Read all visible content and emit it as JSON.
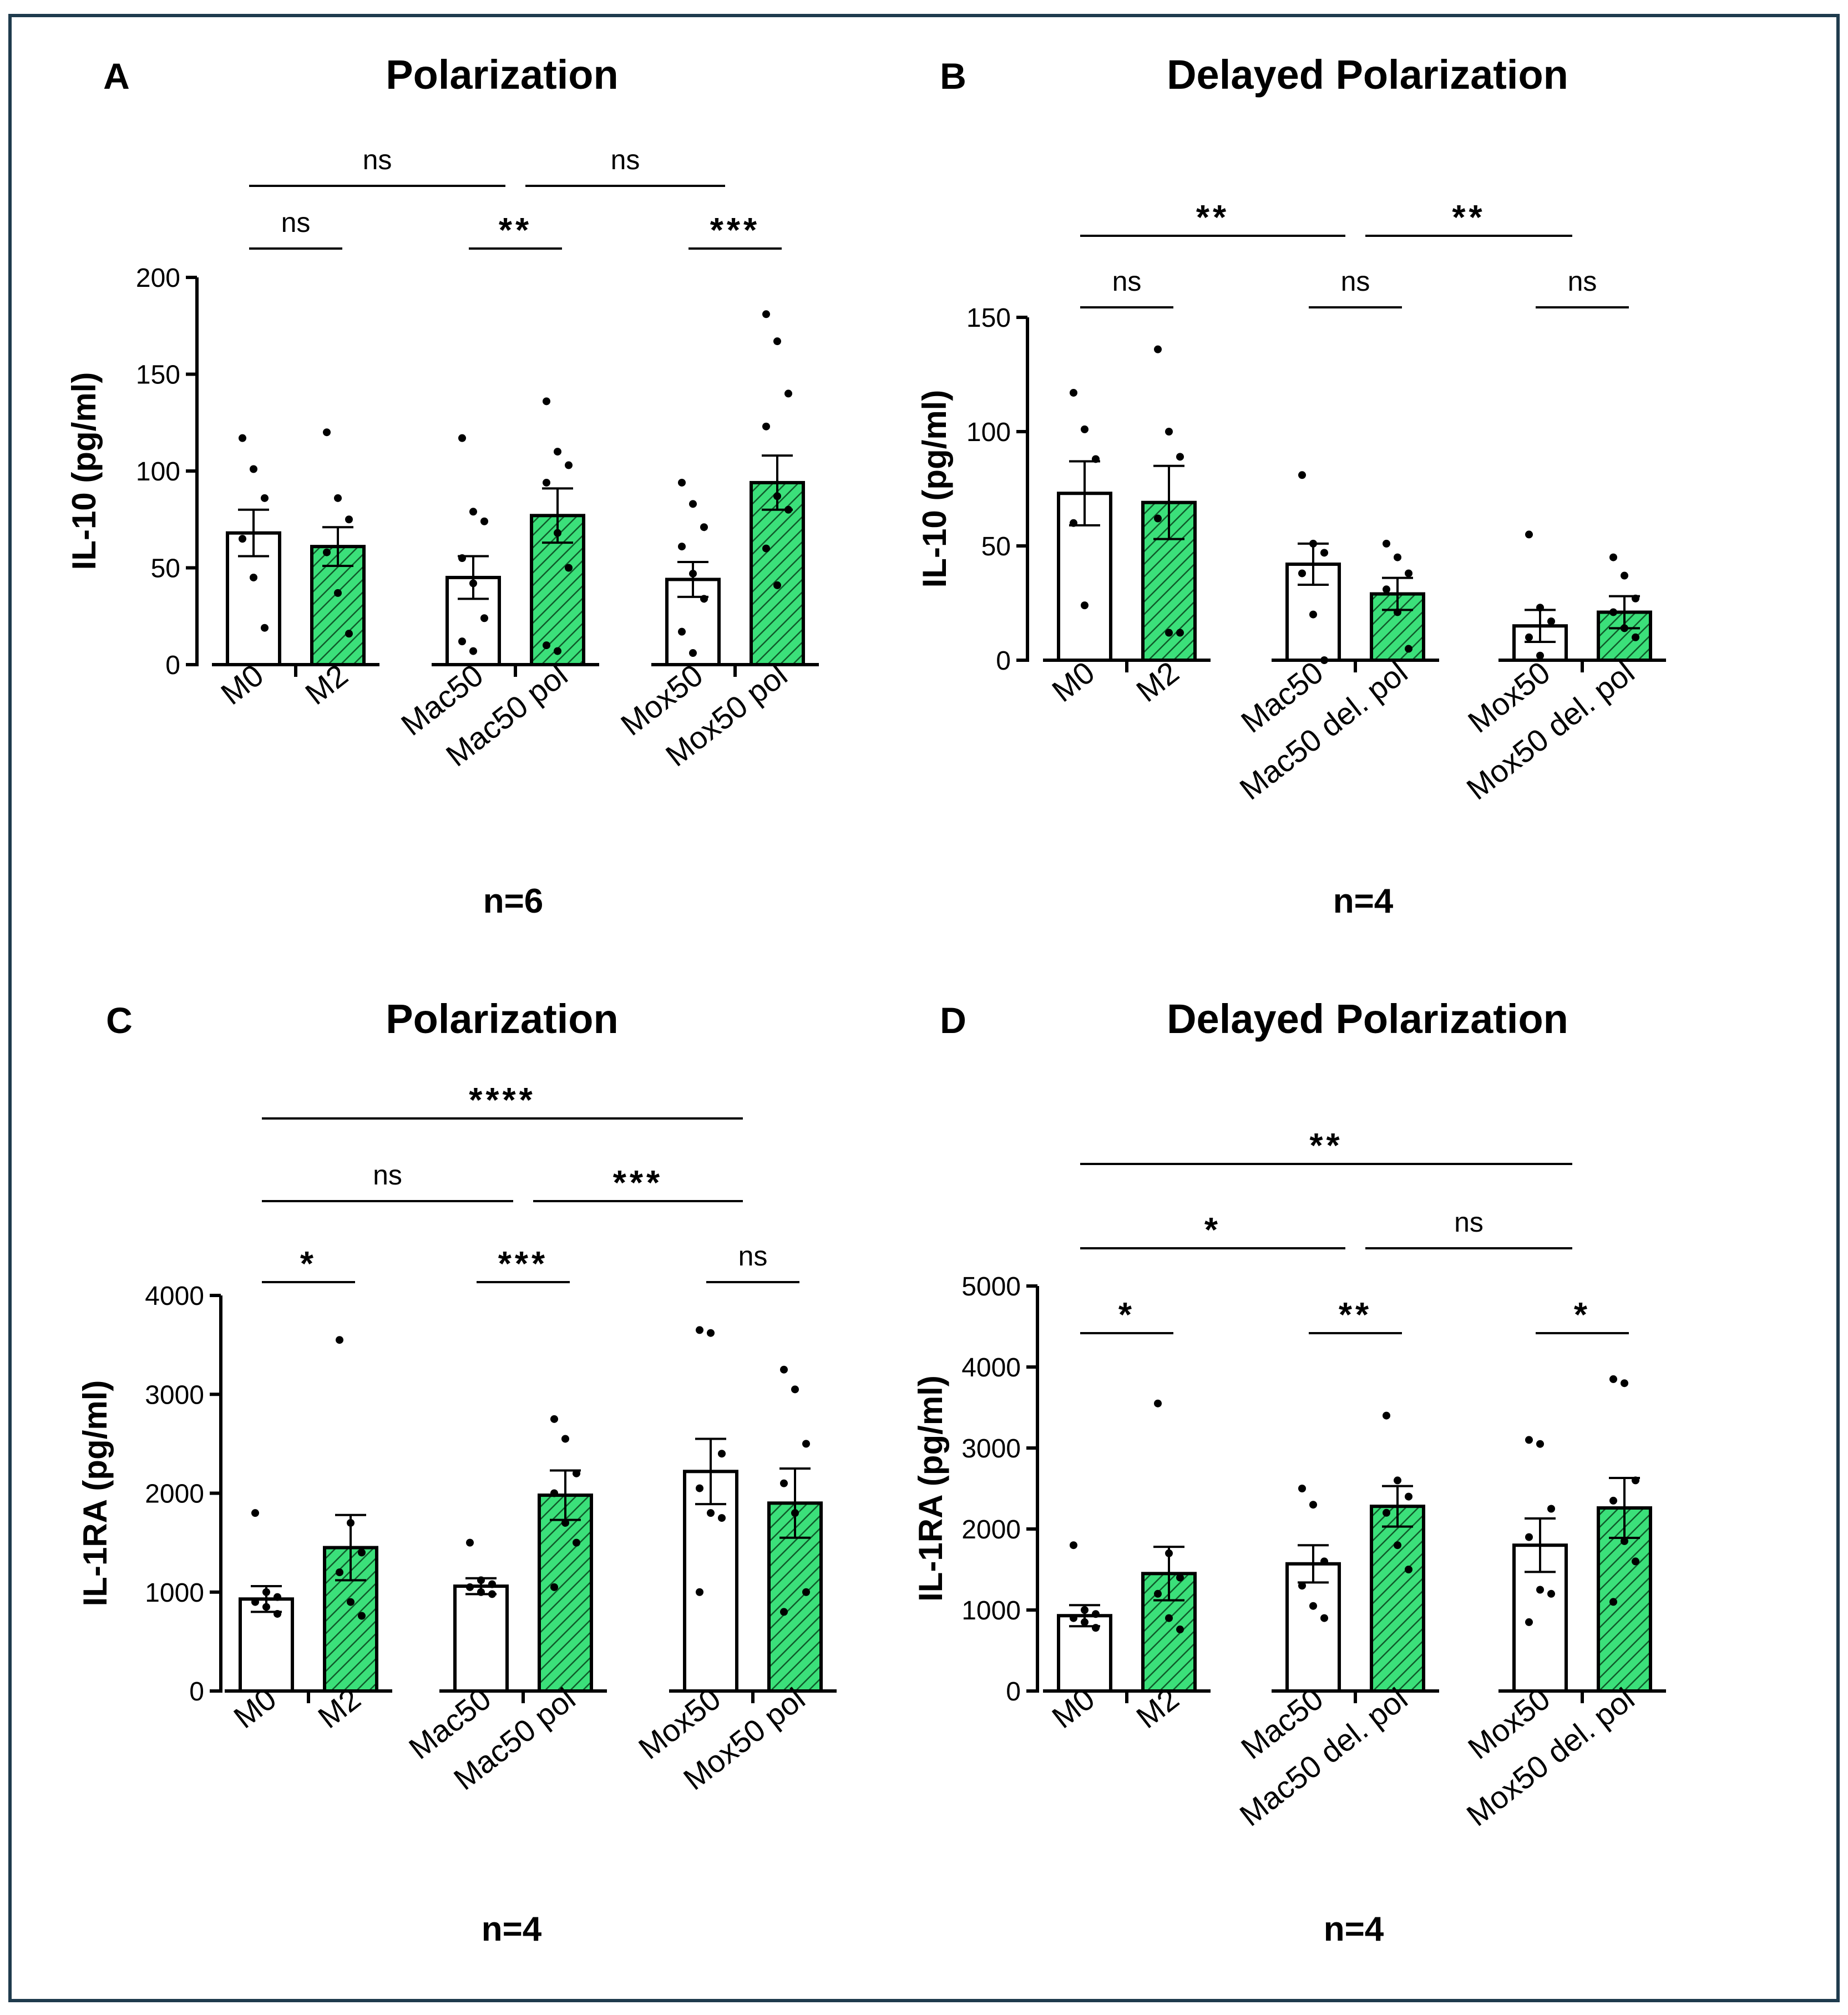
{
  "figure": {
    "border_color": "#1f3b4d",
    "bar_green": "#3be07a",
    "hatch_color": "#0f5a2a"
  },
  "chart_data": [
    {
      "panel": "A",
      "type": "bar",
      "title": "Polarization",
      "ylabel": "IL-10 (pg/ml)",
      "xlabel": "",
      "ylim": [
        0,
        200
      ],
      "yticks": [
        0,
        50,
        100,
        150,
        200
      ],
      "categories": [
        "M0",
        "M2",
        "Mac50",
        "Mac50 pol",
        "Mox50",
        "Mox50 pol"
      ],
      "fill": [
        "white",
        "green",
        "white",
        "green",
        "white",
        "green"
      ],
      "values": [
        68,
        61,
        45,
        77,
        44,
        94
      ],
      "sem": [
        12,
        10,
        11,
        14,
        9,
        14
      ],
      "points": [
        [
          117,
          101,
          86,
          65,
          45,
          19
        ],
        [
          120,
          86,
          75,
          58,
          37,
          16
        ],
        [
          117,
          79,
          74,
          55,
          42,
          24,
          12,
          7
        ],
        [
          136,
          110,
          103,
          94,
          68,
          50,
          10,
          7
        ],
        [
          94,
          83,
          71,
          61,
          47,
          34,
          17,
          6
        ],
        [
          181,
          167,
          140,
          123,
          87,
          80,
          60,
          41
        ]
      ],
      "annotations": [
        {
          "label": "ns",
          "from": 0,
          "to": 1,
          "level": 1
        },
        {
          "label": "**",
          "from": 2,
          "to": 3,
          "level": 1
        },
        {
          "label": "***",
          "from": 4,
          "to": 5,
          "level": 1
        },
        {
          "label": "ns",
          "from": 0,
          "to": 2.5,
          "level": 2
        },
        {
          "label": "ns",
          "from": 2.5,
          "to": 4.5,
          "level": 2
        }
      ],
      "note": "n=6"
    },
    {
      "panel": "B",
      "type": "bar",
      "title": "Delayed Polarization",
      "ylabel": "IL-10 (pg/ml)",
      "xlabel": "",
      "ylim": [
        0,
        150
      ],
      "yticks": [
        0,
        50,
        100,
        150
      ],
      "categories": [
        "M0",
        "M2",
        "Mac50",
        "Mac50 del. pol",
        "Mox50",
        "Mox50 del. pol"
      ],
      "fill": [
        "white",
        "green",
        "white",
        "green",
        "white",
        "green"
      ],
      "values": [
        73,
        69,
        42,
        29,
        15,
        21
      ],
      "sem": [
        14,
        16,
        9,
        7,
        7,
        7
      ],
      "points": [
        [
          117,
          101,
          88,
          60,
          24
        ],
        [
          136,
          100,
          89,
          62,
          12,
          12
        ],
        [
          81,
          51,
          47,
          38,
          20,
          0
        ],
        [
          51,
          45,
          38,
          31,
          21,
          5
        ],
        [
          55,
          23,
          17,
          10,
          2
        ],
        [
          45,
          37,
          27,
          21,
          14,
          10
        ]
      ],
      "annotations": [
        {
          "label": "ns",
          "from": 0,
          "to": 1,
          "level": 1
        },
        {
          "label": "ns",
          "from": 2,
          "to": 3,
          "level": 1
        },
        {
          "label": "ns",
          "from": 4,
          "to": 5,
          "level": 1
        },
        {
          "label": "**",
          "from": 0,
          "to": 2.5,
          "level": 2
        },
        {
          "label": "**",
          "from": 2.5,
          "to": 4.5,
          "level": 2
        }
      ],
      "note": "n=4"
    },
    {
      "panel": "C",
      "type": "bar",
      "title": "Polarization",
      "ylabel": "IL-1RA (pg/ml)",
      "xlabel": "",
      "ylim": [
        0,
        4000
      ],
      "yticks": [
        0,
        1000,
        2000,
        3000,
        4000
      ],
      "categories": [
        "M0",
        "M2",
        "Mac50",
        "Mac50 pol",
        "Mox50",
        "Mox50 pol"
      ],
      "fill": [
        "white",
        "green",
        "white",
        "green",
        "white",
        "green"
      ],
      "values": [
        930,
        1450,
        1060,
        1980,
        2220,
        1900
      ],
      "sem": [
        130,
        330,
        80,
        250,
        330,
        350
      ],
      "points": [
        [
          1800,
          1000,
          950,
          900,
          850,
          780
        ],
        [
          3550,
          1700,
          1400,
          1200,
          900,
          760
        ],
        [
          1500,
          1120,
          1080,
          1050,
          1000,
          980
        ],
        [
          2750,
          2550,
          2200,
          2000,
          1700,
          1500,
          1050
        ],
        [
          3650,
          3620,
          2400,
          2050,
          1800,
          1750,
          1000
        ],
        [
          3250,
          3050,
          2500,
          2100,
          1800,
          1000,
          800
        ]
      ],
      "annotations": [
        {
          "label": "*",
          "from": 0,
          "to": 1,
          "level": 1
        },
        {
          "label": "***",
          "from": 2,
          "to": 3,
          "level": 1
        },
        {
          "label": "ns",
          "from": 4,
          "to": 5,
          "level": 1
        },
        {
          "label": "ns",
          "from": 0,
          "to": 2.5,
          "level": 2
        },
        {
          "label": "***",
          "from": 2.5,
          "to": 4.5,
          "level": 2
        },
        {
          "label": "****",
          "from": 0,
          "to": 4.5,
          "level": 3
        }
      ],
      "note": "n=4"
    },
    {
      "panel": "D",
      "type": "bar",
      "title": "Delayed Polarization",
      "ylabel": "IL-1RA (pg/ml)",
      "xlabel": "",
      "ylim": [
        0,
        5000
      ],
      "yticks": [
        0,
        1000,
        2000,
        3000,
        4000,
        5000
      ],
      "categories": [
        "M0",
        "M2",
        "Mac50",
        "Mac50 del. pol",
        "Mox50",
        "Mox50 del. pol"
      ],
      "fill": [
        "white",
        "green",
        "white",
        "green",
        "white",
        "green"
      ],
      "values": [
        930,
        1450,
        1570,
        2280,
        1800,
        2260
      ],
      "sem": [
        130,
        330,
        230,
        250,
        330,
        370
      ],
      "points": [
        [
          1800,
          1000,
          950,
          900,
          850,
          780
        ],
        [
          3550,
          1700,
          1400,
          1200,
          900,
          760
        ],
        [
          2500,
          2300,
          1600,
          1300,
          1050,
          900
        ],
        [
          3400,
          2600,
          2400,
          2200,
          1800,
          1500
        ],
        [
          3100,
          3050,
          2250,
          1900,
          1250,
          1200,
          850
        ],
        [
          3850,
          3800,
          2600,
          2350,
          1850,
          1600,
          1100
        ]
      ],
      "annotations": [
        {
          "label": "*",
          "from": 0,
          "to": 1,
          "level": 1
        },
        {
          "label": "**",
          "from": 2,
          "to": 3,
          "level": 1
        },
        {
          "label": "*",
          "from": 4,
          "to": 5,
          "level": 1
        },
        {
          "label": "*",
          "from": 0,
          "to": 2.5,
          "level": 2
        },
        {
          "label": "ns",
          "from": 2.5,
          "to": 4.5,
          "level": 2
        },
        {
          "label": "**",
          "from": 0,
          "to": 4.5,
          "level": 3
        }
      ],
      "note": "n=4"
    }
  ]
}
